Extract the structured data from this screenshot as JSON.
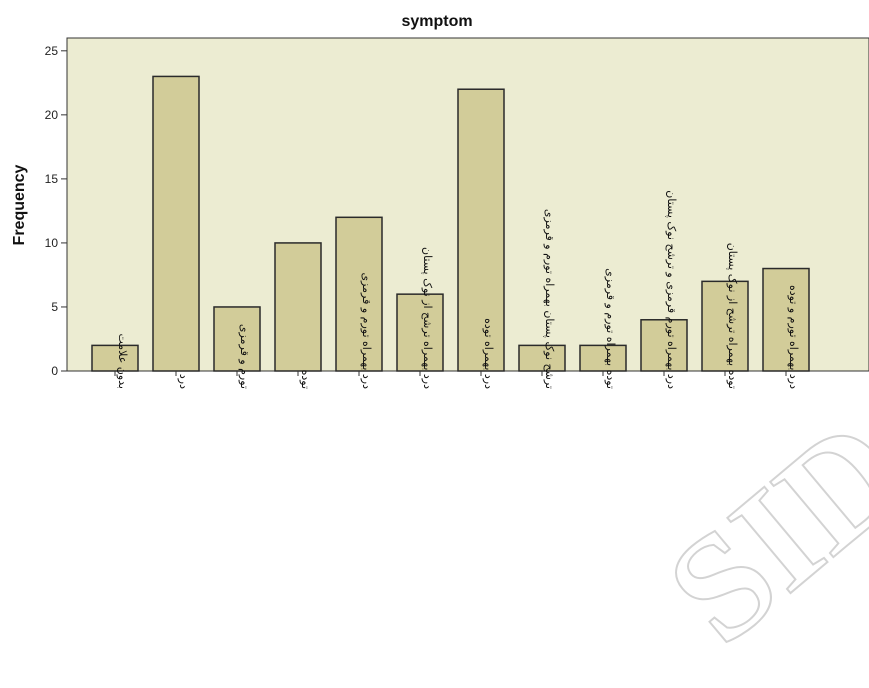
{
  "chart_data": {
    "type": "bar",
    "title": "symptom",
    "ylabel": "Frequency",
    "xlabel": "",
    "ylim": [
      0,
      26
    ],
    "yticks": [
      0,
      5,
      10,
      15,
      20,
      25
    ],
    "grid": false,
    "legend": "none",
    "categories": [
      "بدون علامت",
      "درد",
      "تورم و قرمزی",
      "توده",
      "درد بهمراه تورم و قرمزی",
      "درد بهمراه ترشح از نوک پستان",
      "درد بهمراه توده",
      "ترشح نوک پستان بهمراه تورم و قرمزی",
      "توده بهمراه تورم و قرمزی",
      "درد بهمراه تورم قرمزی و ترشح نوک پستان",
      "توده بهمراه ترشح از نوک پستان",
      "درد بهمراه تورم و توده"
    ],
    "values": [
      2,
      23,
      5,
      10,
      12,
      6,
      22,
      2,
      2,
      4,
      7,
      8
    ],
    "colors": {
      "bar_fill": "#d2cc99",
      "bar_stroke": "#2a2a2a",
      "plot_bg": "#ececd2",
      "axis": "#333333"
    }
  },
  "watermark": "SID"
}
